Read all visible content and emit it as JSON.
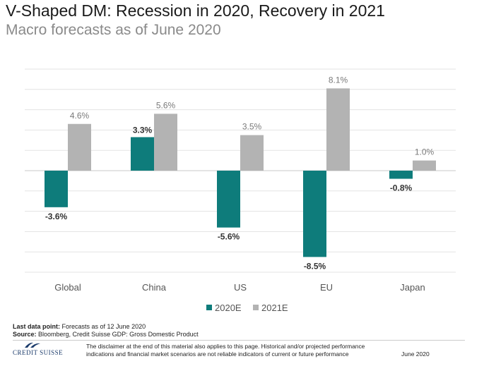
{
  "title": "V-Shaped DM: Recession in 2020, Recovery in 2021",
  "subtitle": "Macro forecasts as of June 2020",
  "chart_data": {
    "type": "bar",
    "categories": [
      "Global",
      "China",
      "US",
      "EU",
      "Japan"
    ],
    "series": [
      {
        "name": "2020E",
        "color": "#0e7c7b",
        "values": [
          -3.6,
          3.3,
          -5.6,
          -8.5,
          -0.8
        ],
        "labels": [
          "-3.6%",
          "3.3%",
          "-5.6%",
          "-8.5%",
          "-0.8%"
        ]
      },
      {
        "name": "2021E",
        "color": "#b3b3b3",
        "values": [
          4.6,
          5.6,
          3.5,
          8.1,
          1.0
        ],
        "labels": [
          "4.6%",
          "5.6%",
          "3.5%",
          "8.1%",
          "1.0%"
        ]
      }
    ],
    "ylim": [
      -10,
      10
    ],
    "gridlines": [
      10,
      8,
      6,
      4,
      2,
      0,
      -2,
      -4,
      -6,
      -8,
      -10
    ],
    "xlabel": "",
    "ylabel": "",
    "legend_position": "bottom-center"
  },
  "footer": {
    "last_data_label": "Last data point:",
    "last_data_text": "Forecasts as of 12 June  2020",
    "source_label": "Source:",
    "source_text": "Bloomberg, Credit Suisse GDP: Gross Domestic Product",
    "logo_text": "CREDIT SUISSE",
    "disclaimer": "The disclaimer at the end of this material also applies to this page. Historical and/or projected performance indications and financial market scenarios are not reliable indicators of current or future performance",
    "date": "June 2020"
  }
}
